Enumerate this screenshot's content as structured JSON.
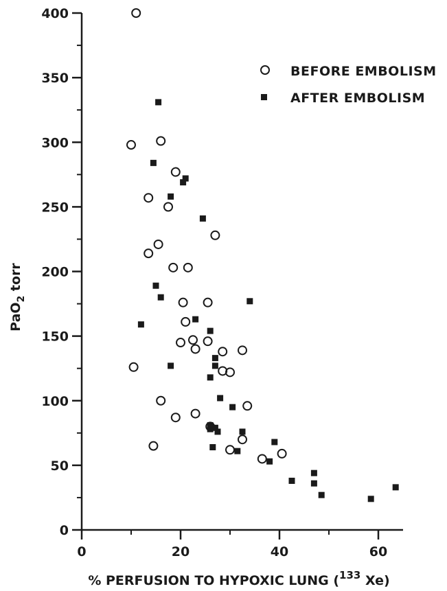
{
  "chart_data": {
    "type": "scatter",
    "title": "",
    "xlabel": {
      "prefix": "% PERFUSION TO HYPOXIC LUNG (",
      "superscript": "133",
      "suffix": " Xe)"
    },
    "ylabel": {
      "main": "PaO",
      "subscript": "2",
      "suffix": " torr"
    },
    "xlim": [
      0,
      65
    ],
    "ylim": [
      0,
      400
    ],
    "xticks": [
      "0",
      "20",
      "40",
      "60"
    ],
    "xtick_values": [
      0,
      20,
      40,
      60
    ],
    "yticks": [
      "0",
      "50",
      "100",
      "150",
      "200",
      "250",
      "300",
      "350",
      "400"
    ],
    "ytick_values": [
      0,
      50,
      100,
      150,
      200,
      250,
      300,
      350,
      400
    ],
    "grid": false,
    "legend_position": "top-right",
    "series": [
      {
        "name": "BEFORE EMBOLISM",
        "marker": "open-circle",
        "points": [
          [
            11,
            400
          ],
          [
            10,
            298
          ],
          [
            16,
            301
          ],
          [
            13.5,
            257
          ],
          [
            17.5,
            250
          ],
          [
            19,
            277
          ],
          [
            27,
            228
          ],
          [
            15.5,
            221
          ],
          [
            13.5,
            214
          ],
          [
            18.5,
            203
          ],
          [
            21.5,
            203
          ],
          [
            20.5,
            176
          ],
          [
            25.5,
            176
          ],
          [
            21,
            161
          ],
          [
            22.5,
            147
          ],
          [
            20,
            145
          ],
          [
            25.5,
            146
          ],
          [
            23,
            140
          ],
          [
            28.5,
            138
          ],
          [
            32.5,
            139
          ],
          [
            28.5,
            123
          ],
          [
            30,
            122
          ],
          [
            10.5,
            126
          ],
          [
            16,
            100
          ],
          [
            19,
            87
          ],
          [
            23,
            90
          ],
          [
            33.5,
            96
          ],
          [
            26,
            80
          ],
          [
            14.5,
            65
          ],
          [
            30,
            62
          ],
          [
            32.5,
            70
          ],
          [
            36.5,
            55
          ],
          [
            40.5,
            59
          ]
        ]
      },
      {
        "name": "AFTER EMBOLISM",
        "marker": "filled-square",
        "points": [
          [
            15.5,
            331
          ],
          [
            14.5,
            284
          ],
          [
            21,
            272
          ],
          [
            20.5,
            269
          ],
          [
            18,
            258
          ],
          [
            24.5,
            241
          ],
          [
            15,
            189
          ],
          [
            16,
            180
          ],
          [
            34,
            177
          ],
          [
            23,
            163
          ],
          [
            12,
            159
          ],
          [
            26,
            154
          ],
          [
            27,
            133
          ],
          [
            27,
            127
          ],
          [
            18,
            127
          ],
          [
            26,
            118
          ],
          [
            28,
            102
          ],
          [
            30.5,
            95
          ],
          [
            26,
            81
          ],
          [
            26,
            78
          ],
          [
            27,
            79
          ],
          [
            27.5,
            76
          ],
          [
            26.5,
            64
          ],
          [
            32.5,
            76
          ],
          [
            31.5,
            61
          ],
          [
            39,
            68
          ],
          [
            38,
            53
          ],
          [
            42.5,
            38
          ],
          [
            47,
            44
          ],
          [
            47,
            36
          ],
          [
            48.5,
            27
          ],
          [
            58.5,
            24
          ],
          [
            63.5,
            33
          ]
        ]
      }
    ]
  }
}
